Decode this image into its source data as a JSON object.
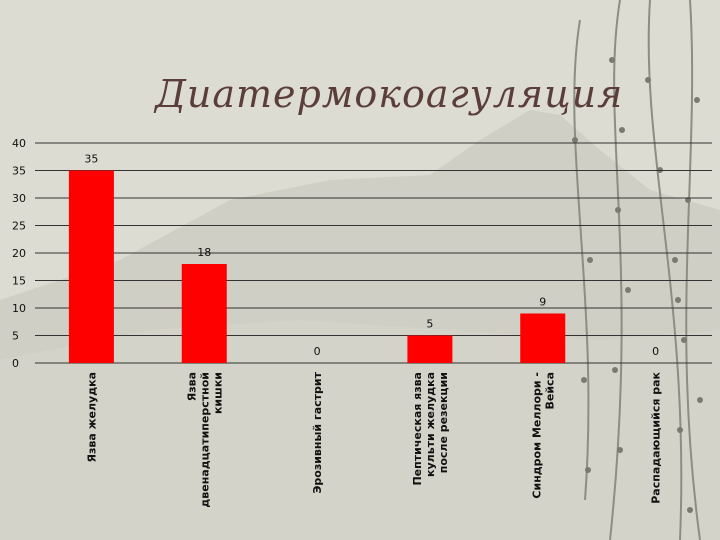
{
  "title": "Диатермокоагуляция",
  "chart_data": {
    "type": "bar",
    "categories": [
      [
        "Язва желудка"
      ],
      [
        "Язва",
        "двенадцатиперстной",
        "кишки"
      ],
      [
        "Эрозивный гастрит"
      ],
      [
        "Пептическая язва",
        "культи желудка",
        "после резекции"
      ],
      [
        "Синдром Меллори -",
        "Вейса"
      ],
      [
        "Распадающийся рак"
      ]
    ],
    "values": [
      35,
      18,
      0,
      5,
      9,
      0
    ],
    "ylim": [
      0,
      40
    ],
    "yticks": [
      0,
      5,
      10,
      15,
      20,
      25,
      30,
      35,
      40
    ],
    "bar_color": "#ff0000",
    "gridlines": true
  }
}
